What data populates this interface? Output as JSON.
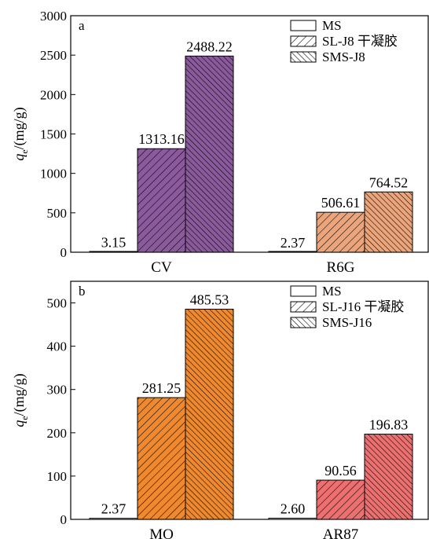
{
  "chart_data": [
    {
      "type": "bar",
      "panel_letter": "a",
      "ylabel_main": "q",
      "ylabel_sub": "e",
      "ylabel_unit": "/(mg/g)",
      "ylim": [
        0,
        3000
      ],
      "yticks": [
        0,
        500,
        1000,
        1500,
        2000,
        2500,
        3000
      ],
      "categories": [
        "CV",
        "R6G"
      ],
      "series": [
        {
          "name": "MS",
          "values": [
            3.15,
            2.37
          ]
        },
        {
          "name": "SL-J8 干凝胶",
          "values": [
            1313.16,
            506.61
          ]
        },
        {
          "name": "SMS-J8",
          "values": [
            2488.22,
            764.52
          ]
        }
      ],
      "value_labels": [
        [
          "3.15",
          "1313.16",
          "2488.22"
        ],
        [
          "2.37",
          "506.61",
          "764.52"
        ]
      ],
      "category_colors": [
        "#8a5a9c",
        "#eca47a"
      ],
      "legend_position": "top-right",
      "grid": false
    },
    {
      "type": "bar",
      "panel_letter": "b",
      "ylabel_main": "q",
      "ylabel_sub": "e",
      "ylabel_unit": "/(mg/g)",
      "ylim": [
        0,
        550
      ],
      "yticks": [
        0,
        100,
        200,
        300,
        400,
        500
      ],
      "categories": [
        "MO",
        "AR87"
      ],
      "series": [
        {
          "name": "MS",
          "values": [
            2.37,
            2.6
          ]
        },
        {
          "name": "SL-J16 干凝胶",
          "values": [
            281.25,
            90.56
          ]
        },
        {
          "name": "SMS-J16",
          "values": [
            485.53,
            196.83
          ]
        }
      ],
      "value_labels": [
        [
          "2.37",
          "281.25",
          "485.53"
        ],
        [
          "2.60",
          "90.56",
          "196.83"
        ]
      ],
      "category_colors": [
        "#f0892d",
        "#ec7070"
      ],
      "legend_position": "top-right",
      "grid": false
    }
  ]
}
